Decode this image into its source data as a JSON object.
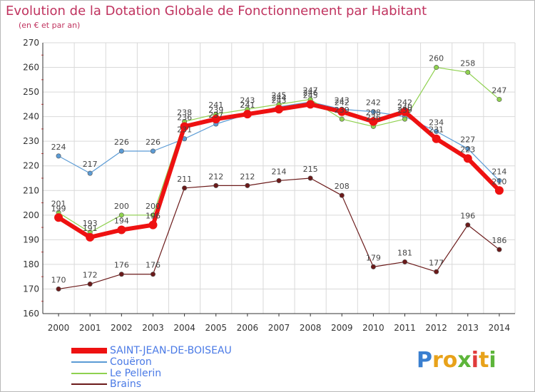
{
  "chart_data": {
    "type": "line",
    "title": "Evolution de la Dotation Globale de Fonctionnement par Habitant",
    "subtitle": "(en € et par an)",
    "xlabel": "",
    "ylabel": "",
    "ylim": [
      160,
      270
    ],
    "yticks": [
      160,
      170,
      180,
      190,
      200,
      210,
      220,
      230,
      240,
      250,
      260,
      270
    ],
    "categories": [
      "2000",
      "2001",
      "2002",
      "2003",
      "2004",
      "2005",
      "2006",
      "2007",
      "2008",
      "2009",
      "2010",
      "2011",
      "2012",
      "2013",
      "2014"
    ],
    "series": [
      {
        "name": "Brains",
        "color": "#6b1a1a",
        "values": [
          170,
          172,
          176,
          176,
          211,
          212,
          212,
          214,
          215,
          208,
          179,
          181,
          177,
          196,
          186
        ]
      },
      {
        "name": "Couëron",
        "color": "#5b9bd5",
        "values": [
          224,
          217,
          226,
          226,
          231,
          237,
          241,
          244,
          246,
          243,
          242,
          240,
          234,
          227,
          214
        ]
      },
      {
        "name": "Le Pellerin",
        "color": "#8fd14f",
        "values": [
          201,
          193,
          200,
          200,
          238,
          241,
          243,
          245,
          247,
          239,
          236,
          239,
          260,
          258,
          247
        ]
      },
      {
        "name": "SAINT-JEAN-DE-BOISEAU",
        "color": "#ee1111",
        "values": [
          199,
          191,
          194,
          196,
          236,
          239,
          241,
          243,
          245,
          242,
          238,
          242,
          231,
          223,
          210
        ]
      }
    ],
    "legend": [
      "SAINT-JEAN-DE-BOISEAU",
      "Couëron",
      "Le Pellerin",
      "Brains"
    ],
    "legend_position": "bottom-left",
    "grid": true
  },
  "logo": {
    "letters": [
      "P",
      "r",
      "o",
      "x",
      "i",
      "t",
      "i"
    ],
    "colors": [
      "#3a7fd0",
      "#e8a21a",
      "#e8a21a",
      "#5db53a",
      "#e03b3b",
      "#e8a21a",
      "#5db53a"
    ]
  }
}
